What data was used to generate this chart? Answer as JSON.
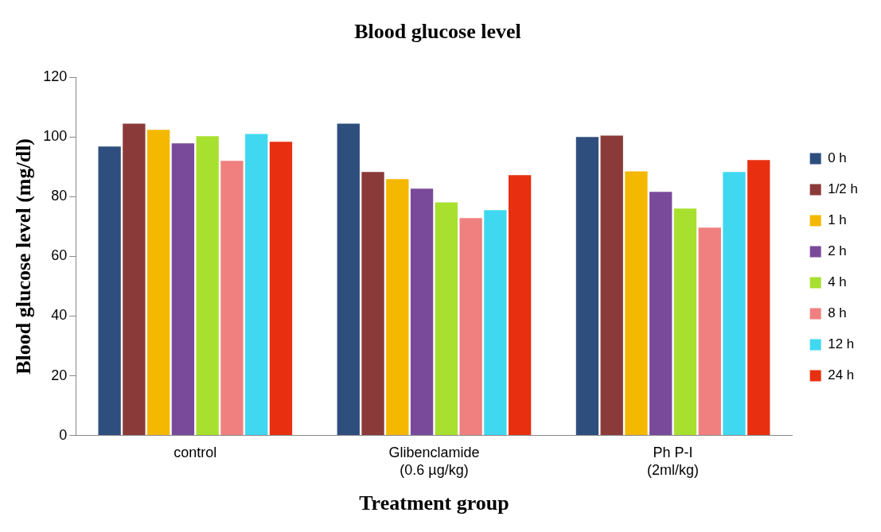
{
  "chart_data": {
    "type": "bar",
    "title": "Blood glucose level",
    "xlabel": "Treatment group",
    "ylabel": "Blood glucose level (mg/dl)",
    "categories": [
      "control",
      "Glibenclamide\n(0.6 µg/kg)",
      "Ph P-I\n(2ml/kg)"
    ],
    "series": [
      {
        "name": "0 h",
        "color": "#2e4e7e",
        "values": [
          96.8,
          104.5,
          100
        ]
      },
      {
        "name": "1/2 h",
        "color": "#8b3a3a",
        "values": [
          104.5,
          88.3,
          100.5
        ]
      },
      {
        "name": "1 h",
        "color": "#f5b800",
        "values": [
          102.4,
          85.9,
          88.5
        ]
      },
      {
        "name": "2 h",
        "color": "#7a4a9a",
        "values": [
          97.9,
          82.7,
          81.6
        ]
      },
      {
        "name": "4 h",
        "color": "#a8e030",
        "values": [
          100.3,
          78.1,
          76
        ]
      },
      {
        "name": "8 h",
        "color": "#f08080",
        "values": [
          92,
          72.8,
          69.6
        ]
      },
      {
        "name": "12 h",
        "color": "#40d8f0",
        "values": [
          101,
          75.5,
          88.3
        ]
      },
      {
        "name": "24 h",
        "color": "#e83010",
        "values": [
          98.4,
          87.2,
          92.3
        ]
      }
    ],
    "ylim": [
      0,
      120
    ],
    "yticks": [
      0,
      20,
      40,
      60,
      80,
      100,
      120
    ],
    "grid": false,
    "legend": "right"
  }
}
